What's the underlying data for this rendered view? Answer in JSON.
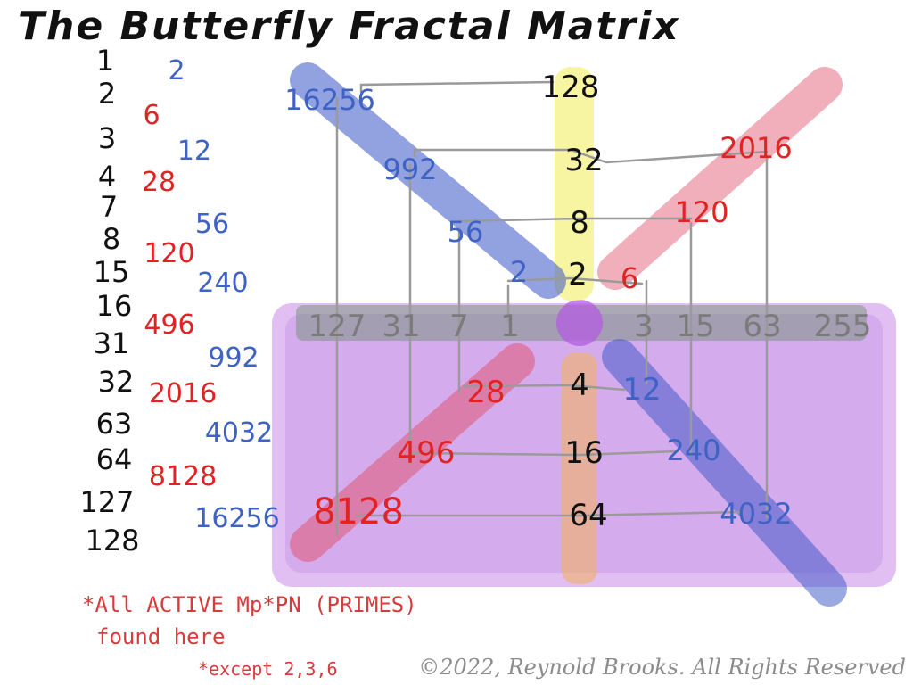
{
  "title": "The Butterfly Fractal Matrix",
  "left_column": {
    "k_values": [
      "1",
      "2",
      "3",
      "4",
      "7",
      "8",
      "15",
      "16",
      "31",
      "32",
      "63",
      "64",
      "127",
      "128"
    ],
    "blue_values": [
      "2",
      "12",
      "56",
      "240",
      "992",
      "4032",
      "16256"
    ],
    "red_values": [
      "6",
      "28",
      "120",
      "496",
      "2016",
      "8128"
    ]
  },
  "center_axis": {
    "top_black": [
      "128",
      "32",
      "8",
      "2"
    ],
    "bottom_black": [
      "4",
      "16",
      "64"
    ]
  },
  "gray_band": {
    "left": [
      "127",
      "31",
      "7",
      "1"
    ],
    "right": [
      "3",
      "15",
      "63",
      "255"
    ]
  },
  "upper_left_blue": [
    "16256",
    "992",
    "56",
    "2"
  ],
  "upper_right_red": [
    "2016",
    "120",
    "6"
  ],
  "lower_left_red": [
    "28",
    "496",
    "8128"
  ],
  "lower_right_blue": [
    "12",
    "240",
    "4032"
  ],
  "note": {
    "line1": "*All ACTIVE Mp*PN (PRIMES)",
    "line2": "found here",
    "line3": "*except 2,3,6"
  },
  "copyright": "©2022, Reynold Brooks. All Rights Reserved",
  "colors": {
    "blue_band": "#3a55c8",
    "red_band": "#e0506a",
    "yellow_band": "#f3ef7a",
    "orange_band": "#f0b070",
    "purple_wash": "#c98be8",
    "gray_band": "#6b8f6b"
  }
}
